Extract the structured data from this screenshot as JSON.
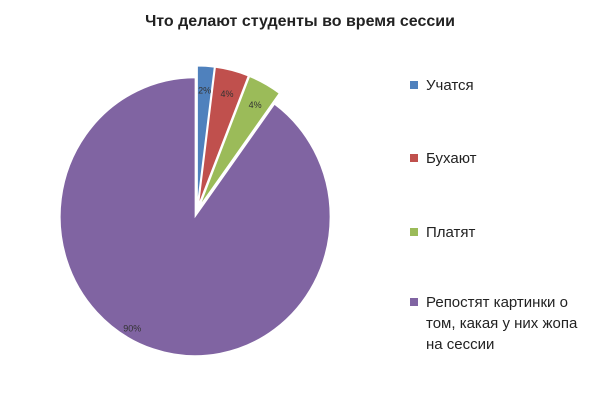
{
  "chart_data": {
    "type": "pie",
    "title": "Что делают студенты во время сессии",
    "categories": [
      "Учатся",
      "Бухают",
      "Платят",
      "Репостят картинки о том, какая у них жопа на сессии"
    ],
    "values": [
      2,
      4,
      4,
      90
    ],
    "value_labels": [
      "2%",
      "4%",
      "4%",
      "90%"
    ],
    "colors": [
      "#4f81bd",
      "#c0504d",
      "#9bbb59",
      "#8064a2"
    ],
    "legend": "right"
  }
}
